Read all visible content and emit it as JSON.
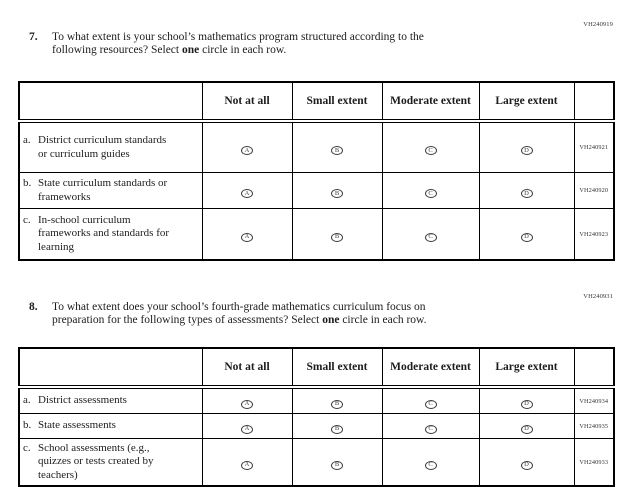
{
  "options": [
    "A",
    "B",
    "C",
    "D"
  ],
  "q7": {
    "code": "VH240919",
    "number": "7.",
    "line1": "To what extent is your school’s mathematics program structured according to the",
    "line2_pre": "following resources? Select ",
    "line2_bold": "one",
    "line2_post": " circle in each row.",
    "table": {
      "headers": [
        "Not at all",
        "Small extent",
        "Moderate extent",
        "Large extent"
      ],
      "rows": [
        {
          "letter": "a.",
          "label": "District curriculum standards or curriculum guides",
          "code": "VH240921"
        },
        {
          "letter": "b.",
          "label": "State curriculum standards or frameworks",
          "code": "VH240920"
        },
        {
          "letter": "c.",
          "label": "In-school curriculum frameworks and standards for learning",
          "code": "VH240923"
        }
      ]
    }
  },
  "q8": {
    "code": "VH240931",
    "number": "8.",
    "line1": "To what extent does your school’s fourth-grade mathematics curriculum focus on",
    "line2_pre": "preparation for the following types of assessments? Select ",
    "line2_bold": "one",
    "line2_post": " circle in each row.",
    "table": {
      "headers": [
        "Not at all",
        "Small extent",
        "Moderate extent",
        "Large extent"
      ],
      "rows": [
        {
          "letter": "a.",
          "label": "District assessments",
          "code": "VH240934"
        },
        {
          "letter": "b.",
          "label": "State assessments",
          "code": "VH240935"
        },
        {
          "letter": "c.",
          "label": "School assessments (e.g., quizzes or tests created by teachers)",
          "code": "VH240933"
        }
      ]
    }
  }
}
